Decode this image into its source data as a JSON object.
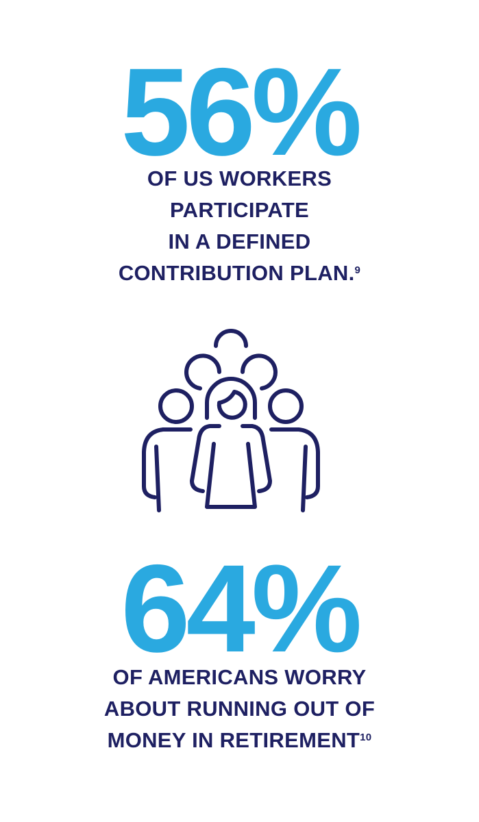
{
  "stat1": {
    "value": "56%",
    "lines": [
      "OF US WORKERS",
      "PARTICIPATE",
      "IN A DEFINED",
      "CONTRIBUTION PLAN."
    ],
    "footnote": "9"
  },
  "icon": "people-group-icon",
  "stat2": {
    "value": "64%",
    "lines": [
      "OF AMERICANS WORRY",
      "ABOUT RUNNING OUT OF",
      "MONEY IN RETIREMENT"
    ],
    "footnote": "10"
  },
  "colors": {
    "accent": "#2aa9e0",
    "text": "#1e2062"
  }
}
